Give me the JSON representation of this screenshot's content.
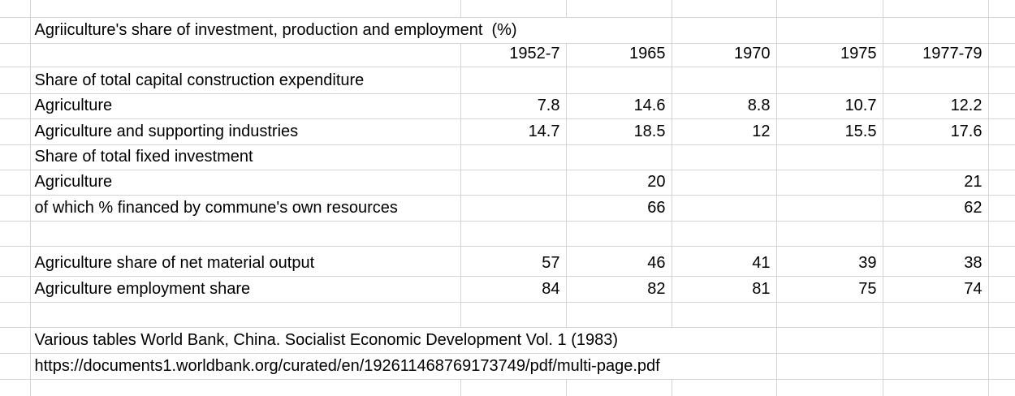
{
  "colors": {
    "gridline": "#d4d4d4",
    "text": "#000000",
    "background": "#ffffff"
  },
  "sheet": {
    "title": "Agriiculture's share of investment, production and employment  (%)",
    "year_columns": [
      "1952-7",
      "1965",
      "1970",
      "1975",
      "1977-79"
    ],
    "rows": [
      {
        "kind": "spacer"
      },
      {
        "kind": "title",
        "label": "Agriiculture's share of investment, production and employment  (%)"
      },
      {
        "kind": "colheader"
      },
      {
        "kind": "section",
        "label": "Share of total capital construction expenditure"
      },
      {
        "kind": "data",
        "label": "Agriculture",
        "values": [
          "7.8",
          "14.6",
          "8.8",
          "10.7",
          "12.2"
        ]
      },
      {
        "kind": "data",
        "label": "Agriculture and supporting industries",
        "values": [
          "14.7",
          "18.5",
          "12",
          "15.5",
          "17.6"
        ]
      },
      {
        "kind": "section",
        "label": "Share of total fixed investment"
      },
      {
        "kind": "data",
        "label": "Agriculture",
        "values": [
          "",
          "20",
          "",
          "",
          "21"
        ]
      },
      {
        "kind": "data",
        "label": "of which % financed by commune's own resources",
        "values": [
          "",
          "66",
          "",
          "",
          "62"
        ]
      },
      {
        "kind": "spacer"
      },
      {
        "kind": "data",
        "label": "Agriculture share of net material output",
        "values": [
          "57",
          "46",
          "41",
          "39",
          "38"
        ]
      },
      {
        "kind": "data",
        "label": "Agriculture employment share",
        "values": [
          "84",
          "82",
          "81",
          "75",
          "74"
        ]
      },
      {
        "kind": "spacer"
      },
      {
        "kind": "note",
        "label": "Various tables World Bank, China. Socialist Economic Development Vol. 1 (1983)"
      },
      {
        "kind": "note",
        "label": "https://documents1.worldbank.org/curated/en/192611468769173749/pdf/multi-page.pdf"
      },
      {
        "kind": "spacer"
      }
    ]
  },
  "chart_data": {
    "type": "table",
    "title": "Agriiculture's share of investment, production and employment (%)",
    "columns": [
      "1952-7",
      "1965",
      "1970",
      "1975",
      "1977-79"
    ],
    "sections": [
      {
        "section": "Share of total capital construction expenditure",
        "rows": [
          {
            "label": "Agriculture",
            "values": [
              7.8,
              14.6,
              8.8,
              10.7,
              12.2
            ]
          },
          {
            "label": "Agriculture and supporting industries",
            "values": [
              14.7,
              18.5,
              12,
              15.5,
              17.6
            ]
          }
        ]
      },
      {
        "section": "Share of total fixed investment",
        "rows": [
          {
            "label": "Agriculture",
            "values": [
              null,
              20,
              null,
              null,
              21
            ]
          },
          {
            "label": "of which % financed by commune's own resources",
            "values": [
              null,
              66,
              null,
              null,
              62
            ]
          }
        ]
      },
      {
        "section": "",
        "rows": [
          {
            "label": "Agriculture share of net material output",
            "values": [
              57,
              46,
              41,
              39,
              38
            ]
          },
          {
            "label": "Agriculture employment share",
            "values": [
              84,
              82,
              81,
              75,
              74
            ]
          }
        ]
      }
    ],
    "source_notes": [
      "Various tables World Bank, China. Socialist Economic Development Vol. 1 (1983)",
      "https://documents1.worldbank.org/curated/en/192611468769173749/pdf/multi-page.pdf"
    ]
  }
}
